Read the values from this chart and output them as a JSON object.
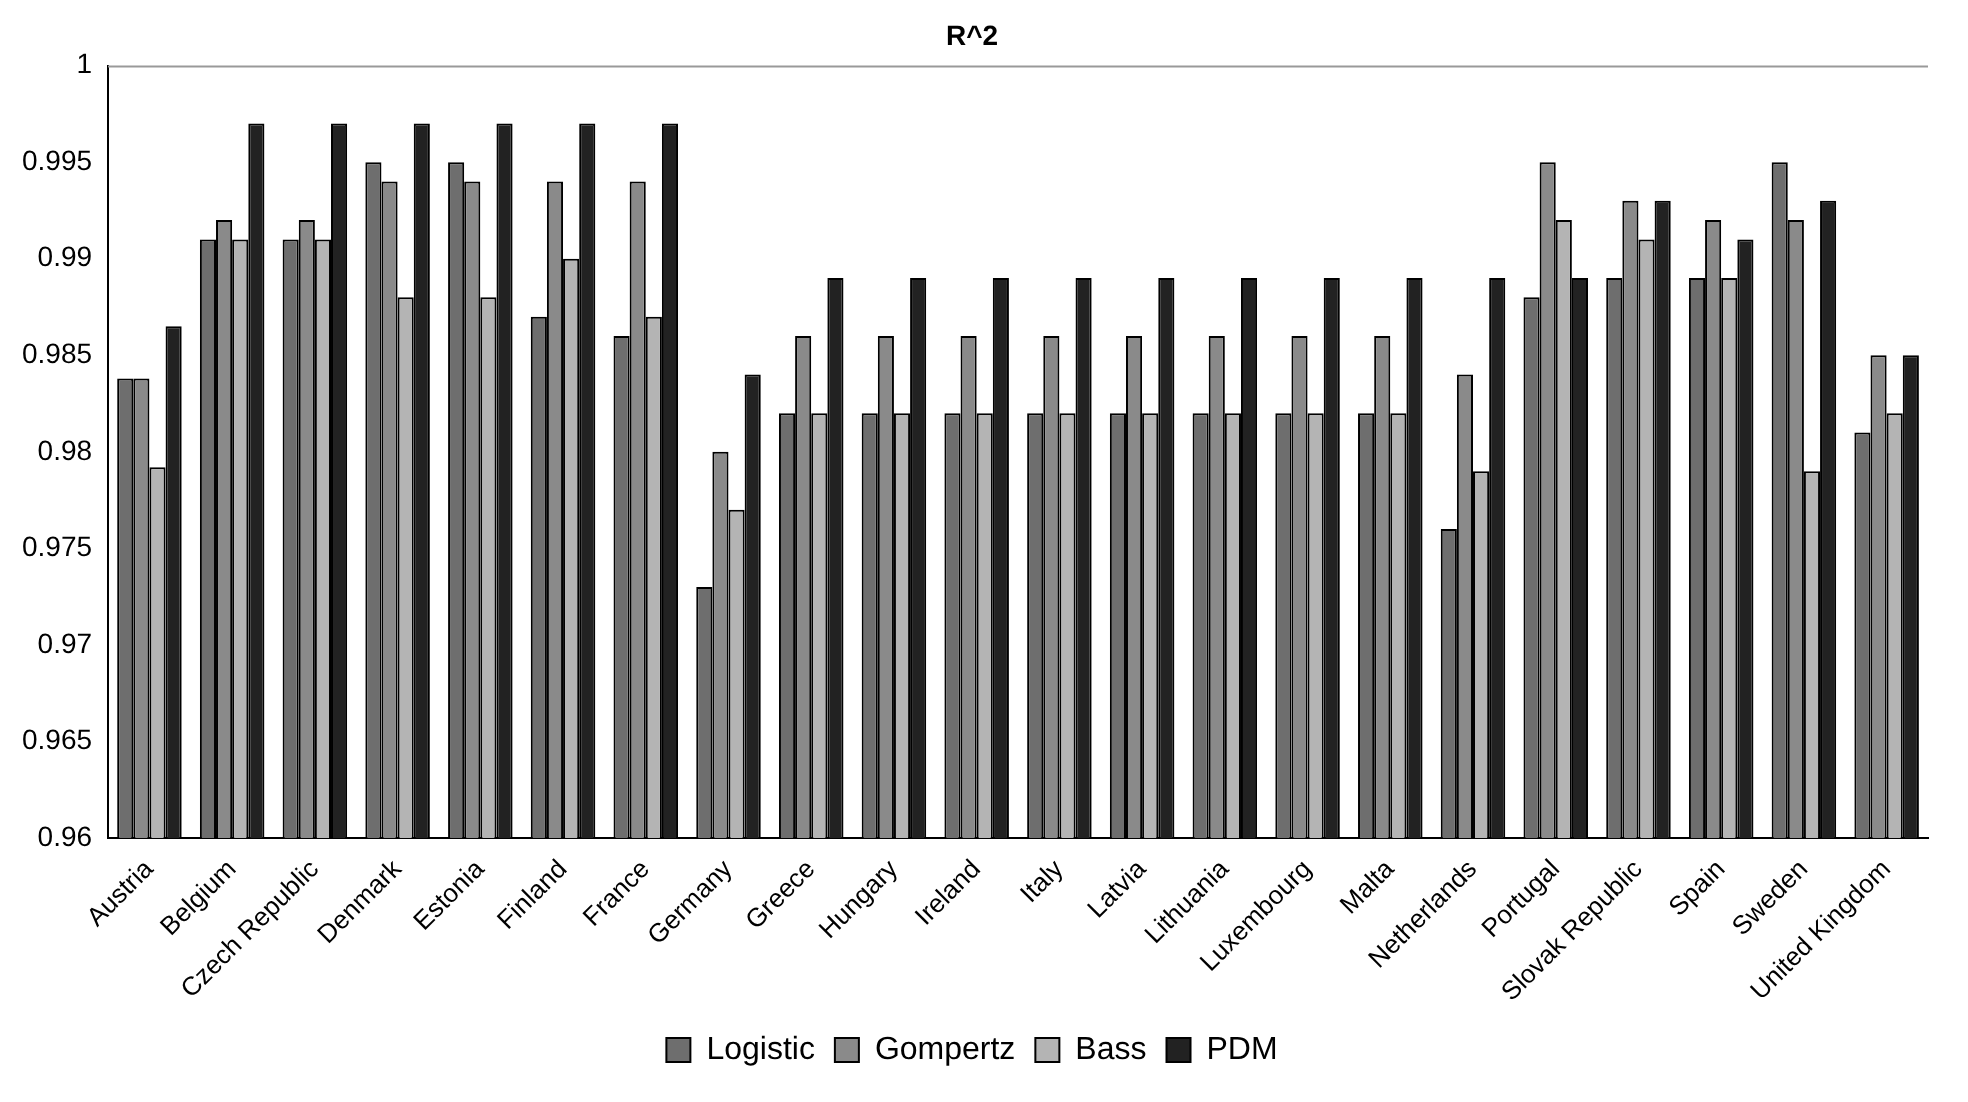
{
  "chart_data": {
    "type": "bar",
    "title": "R^2",
    "categories": [
      "Austria",
      "Belgium",
      "Czech Republic",
      "Denmark",
      "Estonia",
      "Finland",
      "France",
      "Germany",
      "Greece",
      "Hungary",
      "Ireland",
      "Italy",
      "Latvia",
      "Lithuania",
      "Luxembourg",
      "Malta",
      "Netherlands",
      "Portugal",
      "Slovak Republic",
      "Spain",
      "Sweden",
      "United Kingdom"
    ],
    "series": [
      {
        "name": "Logistic",
        "color": "#6e6e6e",
        "values": [
          0.9838,
          0.991,
          0.991,
          0.995,
          0.995,
          0.987,
          0.986,
          0.973,
          0.982,
          0.982,
          0.982,
          0.982,
          0.982,
          0.982,
          0.982,
          0.982,
          0.976,
          0.988,
          0.989,
          0.989,
          0.995,
          0.981
        ]
      },
      {
        "name": "Gompertz",
        "color": "#8a8a8a",
        "values": [
          0.9838,
          0.992,
          0.992,
          0.994,
          0.994,
          0.994,
          0.994,
          0.98,
          0.986,
          0.986,
          0.986,
          0.986,
          0.986,
          0.986,
          0.986,
          0.986,
          0.984,
          0.995,
          0.993,
          0.992,
          0.992,
          0.985
        ]
      },
      {
        "name": "Bass",
        "color": "#b4b4b4",
        "values": [
          0.9792,
          0.991,
          0.991,
          0.988,
          0.988,
          0.99,
          0.987,
          0.977,
          0.982,
          0.982,
          0.982,
          0.982,
          0.982,
          0.982,
          0.982,
          0.982,
          0.979,
          0.992,
          0.991,
          0.989,
          0.979,
          0.982
        ]
      },
      {
        "name": "PDM",
        "color": "#222222",
        "values": [
          0.9865,
          0.997,
          0.997,
          0.997,
          0.997,
          0.997,
          0.997,
          0.984,
          0.989,
          0.989,
          0.989,
          0.989,
          0.989,
          0.989,
          0.989,
          0.989,
          0.989,
          0.989,
          0.993,
          0.991,
          0.993,
          0.985
        ]
      }
    ],
    "ylim": [
      0.96,
      1
    ],
    "yticks": [
      0.96,
      0.965,
      0.97,
      0.975,
      0.98,
      0.985,
      0.99,
      0.995,
      1
    ],
    "grid": false,
    "legend": "bottom"
  }
}
